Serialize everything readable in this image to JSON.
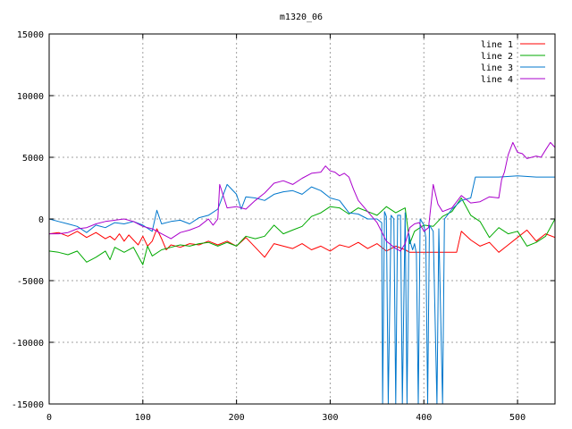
{
  "chart_data": {
    "type": "line",
    "title": "m1320_06",
    "xlabel": "",
    "ylabel": "",
    "xlim": [
      0,
      540
    ],
    "ylim": [
      -15000,
      15000
    ],
    "x_ticks": [
      0,
      100,
      200,
      300,
      400,
      500
    ],
    "y_ticks": [
      -15000,
      -10000,
      -5000,
      0,
      5000,
      10000,
      15000
    ],
    "grid": true,
    "legend_position": "top-right",
    "series": [
      {
        "name": "line 1",
        "color": "#ff0000",
        "points": [
          [
            0,
            -1200
          ],
          [
            10,
            -1100
          ],
          [
            20,
            -1400
          ],
          [
            30,
            -1000
          ],
          [
            40,
            -1500
          ],
          [
            50,
            -1100
          ],
          [
            60,
            -1600
          ],
          [
            65,
            -1400
          ],
          [
            70,
            -1700
          ],
          [
            75,
            -1200
          ],
          [
            80,
            -1800
          ],
          [
            85,
            -1300
          ],
          [
            90,
            -1700
          ],
          [
            95,
            -2100
          ],
          [
            100,
            -1400
          ],
          [
            105,
            -2200
          ],
          [
            110,
            -1800
          ],
          [
            115,
            -800
          ],
          [
            120,
            -1600
          ],
          [
            125,
            -2500
          ],
          [
            130,
            -2100
          ],
          [
            140,
            -2300
          ],
          [
            150,
            -2000
          ],
          [
            160,
            -2100
          ],
          [
            170,
            -1800
          ],
          [
            180,
            -2100
          ],
          [
            190,
            -1800
          ],
          [
            200,
            -2200
          ],
          [
            210,
            -1500
          ],
          [
            220,
            -2300
          ],
          [
            230,
            -3100
          ],
          [
            240,
            -2000
          ],
          [
            250,
            -2200
          ],
          [
            260,
            -2400
          ],
          [
            270,
            -2000
          ],
          [
            280,
            -2500
          ],
          [
            290,
            -2200
          ],
          [
            300,
            -2600
          ],
          [
            310,
            -2100
          ],
          [
            320,
            -2300
          ],
          [
            330,
            -1900
          ],
          [
            340,
            -2400
          ],
          [
            350,
            -2000
          ],
          [
            360,
            -2600
          ],
          [
            370,
            -2200
          ],
          [
            380,
            -2500
          ],
          [
            385,
            -2700
          ],
          [
            390,
            -2700
          ],
          [
            400,
            -2700
          ],
          [
            410,
            -2700
          ],
          [
            420,
            -2700
          ],
          [
            430,
            -2700
          ],
          [
            435,
            -2700
          ],
          [
            440,
            -1000
          ],
          [
            450,
            -1700
          ],
          [
            460,
            -2200
          ],
          [
            470,
            -1900
          ],
          [
            480,
            -2700
          ],
          [
            490,
            -2100
          ],
          [
            500,
            -1500
          ],
          [
            510,
            -900
          ],
          [
            520,
            -1800
          ],
          [
            530,
            -1200
          ],
          [
            540,
            -1500
          ]
        ]
      },
      {
        "name": "line 2",
        "color": "#00aa00",
        "points": [
          [
            0,
            -2600
          ],
          [
            10,
            -2700
          ],
          [
            20,
            -2900
          ],
          [
            30,
            -2600
          ],
          [
            40,
            -3500
          ],
          [
            50,
            -3100
          ],
          [
            60,
            -2600
          ],
          [
            65,
            -3300
          ],
          [
            70,
            -2300
          ],
          [
            80,
            -2700
          ],
          [
            90,
            -2300
          ],
          [
            100,
            -3700
          ],
          [
            105,
            -2200
          ],
          [
            110,
            -3000
          ],
          [
            120,
            -2500
          ],
          [
            130,
            -2300
          ],
          [
            140,
            -2100
          ],
          [
            150,
            -2200
          ],
          [
            160,
            -2000
          ],
          [
            170,
            -1900
          ],
          [
            180,
            -2200
          ],
          [
            190,
            -1900
          ],
          [
            200,
            -2200
          ],
          [
            210,
            -1400
          ],
          [
            220,
            -1600
          ],
          [
            230,
            -1400
          ],
          [
            240,
            -500
          ],
          [
            250,
            -1200
          ],
          [
            260,
            -900
          ],
          [
            270,
            -600
          ],
          [
            280,
            200
          ],
          [
            290,
            500
          ],
          [
            300,
            1000
          ],
          [
            310,
            900
          ],
          [
            320,
            400
          ],
          [
            330,
            900
          ],
          [
            340,
            600
          ],
          [
            350,
            300
          ],
          [
            360,
            1000
          ],
          [
            370,
            500
          ],
          [
            380,
            900
          ],
          [
            385,
            -2000
          ],
          [
            390,
            -1000
          ],
          [
            400,
            -500
          ],
          [
            410,
            -600
          ],
          [
            420,
            200
          ],
          [
            430,
            600
          ],
          [
            440,
            1700
          ],
          [
            450,
            300
          ],
          [
            460,
            -200
          ],
          [
            470,
            -1500
          ],
          [
            480,
            -700
          ],
          [
            490,
            -1200
          ],
          [
            500,
            -1000
          ],
          [
            510,
            -2200
          ],
          [
            520,
            -1900
          ],
          [
            530,
            -1400
          ],
          [
            540,
            0
          ]
        ]
      },
      {
        "name": "line 3",
        "color": "#0077cc",
        "points": [
          [
            0,
            0
          ],
          [
            10,
            -200
          ],
          [
            20,
            -400
          ],
          [
            30,
            -600
          ],
          [
            40,
            -1100
          ],
          [
            50,
            -500
          ],
          [
            60,
            -700
          ],
          [
            70,
            -300
          ],
          [
            80,
            -400
          ],
          [
            90,
            -200
          ],
          [
            100,
            -500
          ],
          [
            110,
            -1000
          ],
          [
            115,
            700
          ],
          [
            120,
            -400
          ],
          [
            130,
            -200
          ],
          [
            140,
            -100
          ],
          [
            150,
            -400
          ],
          [
            160,
            100
          ],
          [
            170,
            300
          ],
          [
            180,
            800
          ],
          [
            190,
            2800
          ],
          [
            200,
            2000
          ],
          [
            205,
            800
          ],
          [
            210,
            1800
          ],
          [
            220,
            1700
          ],
          [
            230,
            1500
          ],
          [
            240,
            2000
          ],
          [
            250,
            2200
          ],
          [
            260,
            2300
          ],
          [
            270,
            2000
          ],
          [
            280,
            2600
          ],
          [
            290,
            2300
          ],
          [
            300,
            1700
          ],
          [
            310,
            1500
          ],
          [
            320,
            500
          ],
          [
            330,
            400
          ],
          [
            340,
            0
          ],
          [
            350,
            0
          ],
          [
            355,
            -300
          ],
          [
            356,
            -15000
          ],
          [
            358,
            600
          ],
          [
            360,
            200
          ],
          [
            362,
            -15000
          ],
          [
            365,
            300
          ],
          [
            368,
            0
          ],
          [
            370,
            -15000
          ],
          [
            372,
            300
          ],
          [
            375,
            300
          ],
          [
            377,
            -15000
          ],
          [
            380,
            500
          ],
          [
            382,
            -15000
          ],
          [
            384,
            -1200
          ],
          [
            386,
            -2000
          ],
          [
            388,
            -2500
          ],
          [
            390,
            -2000
          ],
          [
            392,
            -2800
          ],
          [
            394,
            -15000
          ],
          [
            396,
            0
          ],
          [
            400,
            -500
          ],
          [
            402,
            -1500
          ],
          [
            404,
            -15000
          ],
          [
            406,
            -500
          ],
          [
            410,
            -1000
          ],
          [
            414,
            -15000
          ],
          [
            416,
            -800
          ],
          [
            420,
            -15000
          ],
          [
            422,
            0
          ],
          [
            430,
            800
          ],
          [
            440,
            1500
          ],
          [
            450,
            1700
          ],
          [
            455,
            3400
          ],
          [
            460,
            3400
          ],
          [
            480,
            3400
          ],
          [
            500,
            3500
          ],
          [
            520,
            3400
          ],
          [
            540,
            3400
          ]
        ]
      },
      {
        "name": "line 4",
        "color": "#aa00cc",
        "points": [
          [
            0,
            -1200
          ],
          [
            10,
            -1200
          ],
          [
            20,
            -1100
          ],
          [
            30,
            -800
          ],
          [
            40,
            -700
          ],
          [
            50,
            -400
          ],
          [
            60,
            -200
          ],
          [
            70,
            -100
          ],
          [
            80,
            0
          ],
          [
            90,
            -200
          ],
          [
            100,
            -600
          ],
          [
            110,
            -800
          ],
          [
            120,
            -1200
          ],
          [
            130,
            -1600
          ],
          [
            140,
            -1100
          ],
          [
            150,
            -900
          ],
          [
            160,
            -600
          ],
          [
            170,
            0
          ],
          [
            175,
            -500
          ],
          [
            180,
            0
          ],
          [
            182,
            2800
          ],
          [
            190,
            900
          ],
          [
            200,
            1000
          ],
          [
            210,
            800
          ],
          [
            220,
            1500
          ],
          [
            230,
            2100
          ],
          [
            240,
            2900
          ],
          [
            250,
            3100
          ],
          [
            260,
            2800
          ],
          [
            270,
            3300
          ],
          [
            280,
            3700
          ],
          [
            290,
            3800
          ],
          [
            295,
            4300
          ],
          [
            300,
            3900
          ],
          [
            305,
            3800
          ],
          [
            310,
            3500
          ],
          [
            315,
            3700
          ],
          [
            320,
            3400
          ],
          [
            325,
            2400
          ],
          [
            330,
            1500
          ],
          [
            340,
            600
          ],
          [
            350,
            -300
          ],
          [
            360,
            -1800
          ],
          [
            370,
            -2400
          ],
          [
            375,
            -2600
          ],
          [
            380,
            -2000
          ],
          [
            385,
            -700
          ],
          [
            390,
            -400
          ],
          [
            395,
            -300
          ],
          [
            400,
            -1000
          ],
          [
            405,
            -700
          ],
          [
            410,
            2800
          ],
          [
            415,
            1200
          ],
          [
            420,
            600
          ],
          [
            430,
            900
          ],
          [
            440,
            1900
          ],
          [
            450,
            1300
          ],
          [
            460,
            1400
          ],
          [
            470,
            1800
          ],
          [
            480,
            1700
          ],
          [
            483,
            3200
          ],
          [
            486,
            3800
          ],
          [
            490,
            5200
          ],
          [
            495,
            6200
          ],
          [
            500,
            5400
          ],
          [
            505,
            5300
          ],
          [
            510,
            4900
          ],
          [
            520,
            5100
          ],
          [
            525,
            5000
          ],
          [
            530,
            5600
          ],
          [
            535,
            6200
          ],
          [
            540,
            5800
          ]
        ]
      }
    ]
  }
}
